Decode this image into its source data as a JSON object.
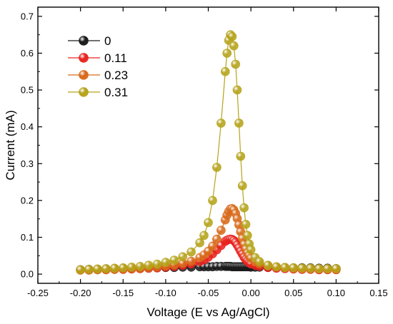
{
  "chart_data": {
    "type": "scatter",
    "title": "",
    "xlabel": "Voltage (E vs Ag/AgCl)",
    "ylabel": "Current (mA)",
    "xlim": [
      -0.25,
      0.15
    ],
    "ylim": [
      -0.025,
      0.725
    ],
    "xticks": [
      -0.25,
      -0.2,
      -0.15,
      -0.1,
      -0.05,
      0.0,
      0.05,
      0.1,
      0.15
    ],
    "xtick_labels": [
      "-0.25",
      "-0.20",
      "-0.15",
      "-0.10",
      "-0.05",
      "0.00",
      "0.05",
      "0.10",
      "0.15"
    ],
    "yticks": [
      0.0,
      0.1,
      0.2,
      0.3,
      0.4,
      0.5,
      0.6,
      0.7
    ],
    "ytick_labels": [
      "0.0",
      "0.1",
      "0.2",
      "0.3",
      "0.4",
      "0.5",
      "0.6",
      "0.7"
    ],
    "grid": false,
    "legend_position": "top-left",
    "x": [
      -0.2,
      -0.19,
      -0.18,
      -0.17,
      -0.16,
      -0.15,
      -0.14,
      -0.13,
      -0.12,
      -0.11,
      -0.1,
      -0.09,
      -0.08,
      -0.07,
      -0.06,
      -0.055,
      -0.05,
      -0.045,
      -0.04,
      -0.035,
      -0.03,
      -0.028,
      -0.026,
      -0.024,
      -0.022,
      -0.02,
      -0.018,
      -0.016,
      -0.014,
      -0.012,
      -0.01,
      -0.008,
      -0.006,
      -0.004,
      -0.002,
      0.0,
      0.005,
      0.01,
      0.02,
      0.03,
      0.04,
      0.05,
      0.06,
      0.07,
      0.08,
      0.09,
      0.1
    ],
    "series": [
      {
        "name": "0",
        "color": "#1a1a1a",
        "values": [
          0.012,
          0.013,
          0.013,
          0.014,
          0.014,
          0.015,
          0.015,
          0.016,
          0.016,
          0.017,
          0.018,
          0.018,
          0.019,
          0.019,
          0.02,
          0.02,
          0.02,
          0.02,
          0.021,
          0.021,
          0.021,
          0.021,
          0.021,
          0.021,
          0.02,
          0.02,
          0.02,
          0.02,
          0.02,
          0.02,
          0.02,
          0.02,
          0.02,
          0.02,
          0.02,
          0.019,
          0.019,
          0.019,
          0.018,
          0.018,
          0.018,
          0.017,
          0.017,
          0.017,
          0.016,
          0.016,
          0.015
        ]
      },
      {
        "name": "0.11",
        "color": "#e8231e",
        "values": [
          0.011,
          0.011,
          0.012,
          0.012,
          0.013,
          0.013,
          0.014,
          0.015,
          0.016,
          0.017,
          0.019,
          0.021,
          0.024,
          0.028,
          0.034,
          0.039,
          0.046,
          0.055,
          0.066,
          0.078,
          0.089,
          0.092,
          0.094,
          0.095,
          0.094,
          0.091,
          0.086,
          0.079,
          0.071,
          0.062,
          0.054,
          0.046,
          0.04,
          0.035,
          0.031,
          0.028,
          0.024,
          0.021,
          0.018,
          0.016,
          0.015,
          0.014,
          0.013,
          0.013,
          0.012,
          0.012,
          0.012
        ]
      },
      {
        "name": "0.23",
        "color": "#d86a1a",
        "values": [
          0.011,
          0.011,
          0.012,
          0.012,
          0.013,
          0.014,
          0.015,
          0.016,
          0.017,
          0.019,
          0.022,
          0.025,
          0.029,
          0.035,
          0.045,
          0.052,
          0.062,
          0.076,
          0.095,
          0.119,
          0.147,
          0.16,
          0.17,
          0.177,
          0.178,
          0.174,
          0.165,
          0.151,
          0.134,
          0.115,
          0.097,
          0.081,
          0.068,
          0.058,
          0.05,
          0.043,
          0.034,
          0.028,
          0.022,
          0.019,
          0.017,
          0.016,
          0.015,
          0.014,
          0.014,
          0.013,
          0.013
        ]
      },
      {
        "name": "0.31",
        "color": "#b5a31a",
        "values": [
          0.012,
          0.013,
          0.014,
          0.015,
          0.016,
          0.017,
          0.019,
          0.021,
          0.024,
          0.027,
          0.032,
          0.038,
          0.047,
          0.06,
          0.085,
          0.105,
          0.14,
          0.2,
          0.29,
          0.41,
          0.55,
          0.6,
          0.635,
          0.65,
          0.645,
          0.62,
          0.57,
          0.5,
          0.41,
          0.32,
          0.24,
          0.18,
          0.135,
          0.105,
          0.082,
          0.066,
          0.045,
          0.034,
          0.024,
          0.02,
          0.018,
          0.017,
          0.016,
          0.016,
          0.015,
          0.015,
          0.015
        ]
      }
    ]
  }
}
